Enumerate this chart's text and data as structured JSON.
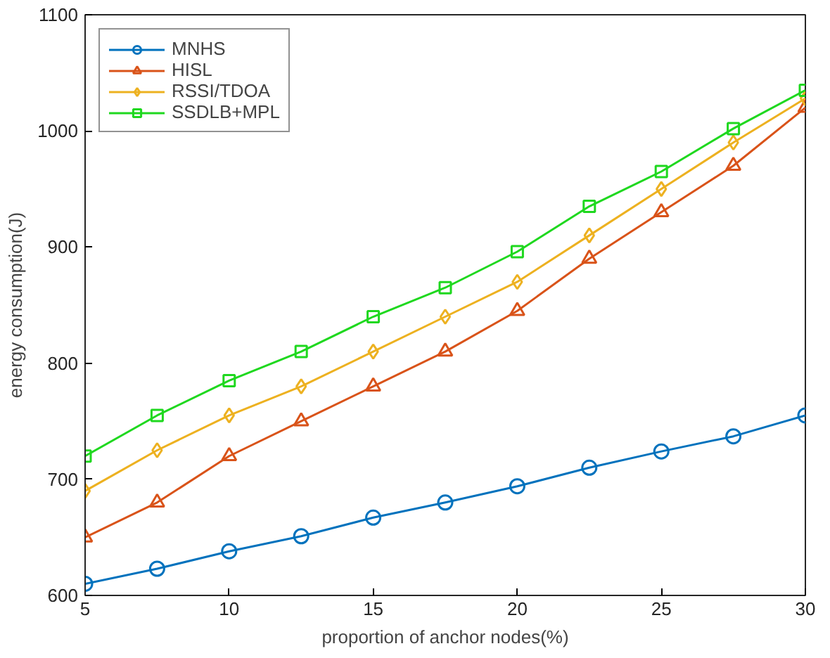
{
  "chart_data": {
    "type": "line",
    "xlabel": "proportion of anchor nodes(%)",
    "ylabel": "energy consumption(J)",
    "x": [
      5,
      7.5,
      10,
      12.5,
      15,
      17.5,
      20,
      22.5,
      25,
      27.5,
      30
    ],
    "xlim": [
      5,
      30
    ],
    "xticks": [
      5,
      10,
      15,
      20,
      25,
      30
    ],
    "ylim": [
      600,
      1100
    ],
    "yticks": [
      600,
      700,
      800,
      900,
      1000,
      1100
    ],
    "grid": false,
    "legend": "top left",
    "series": [
      {
        "name": "MNHS",
        "color": "#0072bd",
        "marker": "circle",
        "values": [
          610,
          623,
          638,
          651,
          667,
          680,
          694,
          710,
          724,
          737,
          755
        ]
      },
      {
        "name": "HISL",
        "color": "#d95319",
        "marker": "triangle",
        "values": [
          650,
          680,
          720,
          750,
          780,
          810,
          845,
          890,
          930,
          970,
          1020
        ]
      },
      {
        "name": "RSSI/TDOA",
        "color": "#edb120",
        "marker": "diamond",
        "values": [
          690,
          725,
          755,
          780,
          810,
          840,
          870,
          910,
          950,
          990,
          1028
        ]
      },
      {
        "name": "SSDLB+MPL",
        "color": "#1fd81f",
        "marker": "square",
        "values": [
          720,
          755,
          785,
          810,
          840,
          865,
          896,
          935,
          965,
          1002,
          1035
        ]
      }
    ]
  }
}
